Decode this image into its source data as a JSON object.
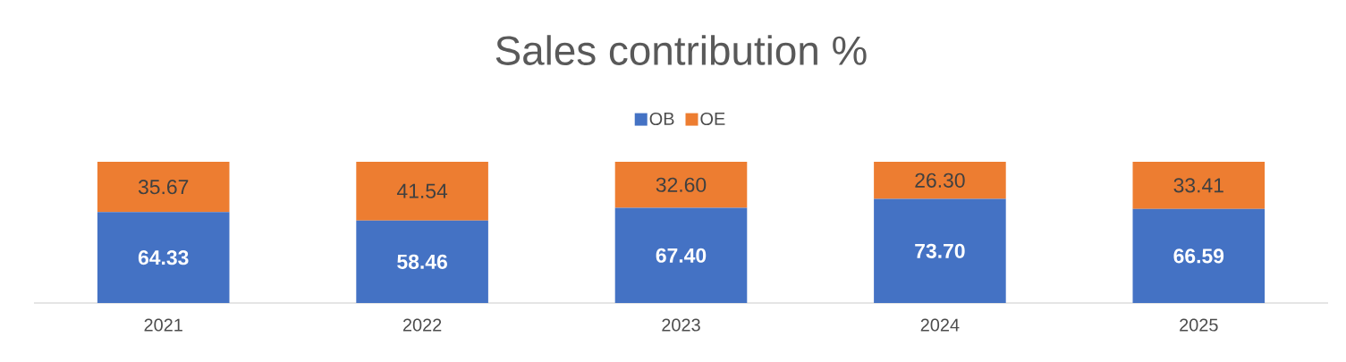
{
  "chart_data": {
    "type": "bar",
    "title": "Sales contribution %",
    "categories": [
      "2021",
      "2022",
      "2023",
      "2024",
      "2025"
    ],
    "stacked": true,
    "legend": "top",
    "series": [
      {
        "name": "OB",
        "color": "#4472c4",
        "values": [
          64.33,
          58.46,
          67.4,
          73.7,
          66.59
        ],
        "value_labels": [
          "64.33",
          "58.46",
          "67.40",
          "73.70",
          "66.59"
        ]
      },
      {
        "name": "OE",
        "color": "#ed7d31",
        "values": [
          35.67,
          41.54,
          32.6,
          26.3,
          33.41
        ],
        "value_labels": [
          "35.67",
          "41.54",
          "32.60",
          "26.30",
          "33.41"
        ]
      }
    ]
  }
}
